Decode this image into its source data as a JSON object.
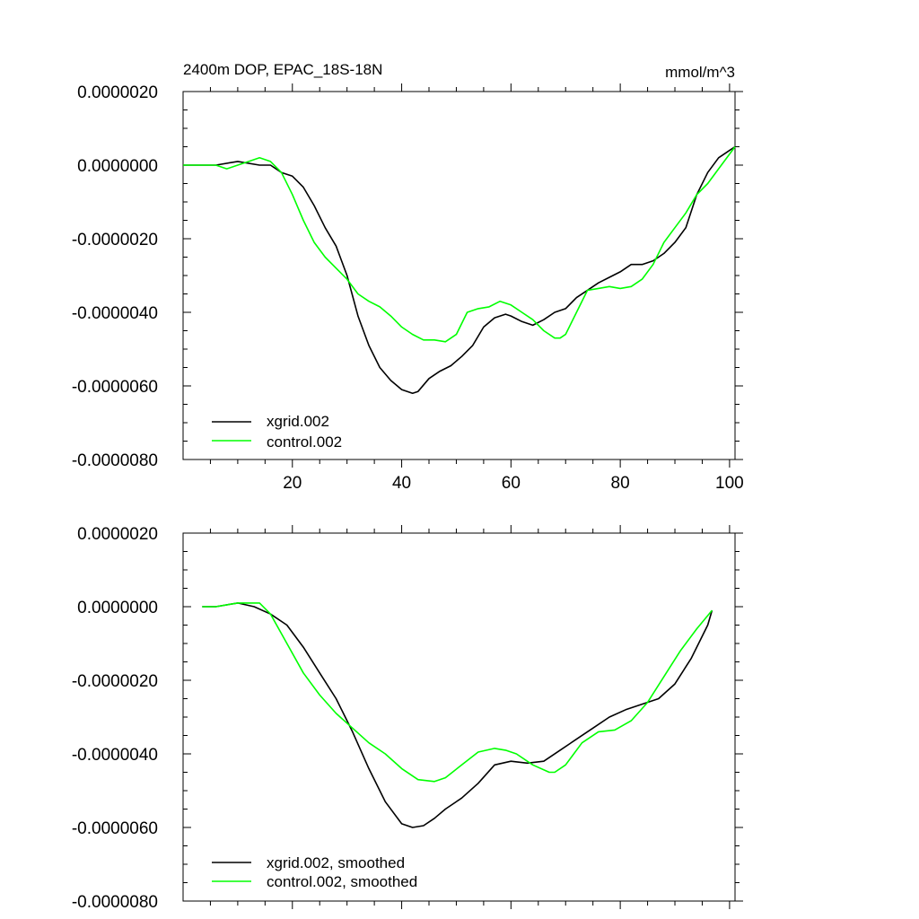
{
  "chart_data": [
    {
      "type": "line",
      "title": "2400m DOP, EPAC_18S-18N",
      "units": "mmol/m^3",
      "xlim": [
        0,
        101
      ],
      "ylim": [
        -8e-06,
        2e-06
      ],
      "xticks": [
        20,
        40,
        60,
        80,
        100
      ],
      "xtick_labels": [
        "20",
        "40",
        "60",
        "80",
        "100"
      ],
      "yticks": [
        2e-06,
        0.0,
        -2e-06,
        -4e-06,
        -6e-06,
        -8e-06
      ],
      "ytick_labels": [
        "0.0000020",
        "0.0000000",
        "-0.0000020",
        "-0.0000040",
        "-0.0000060",
        "-0.0000080"
      ],
      "legend_position": "lower-left",
      "series": [
        {
          "name": "xgrid.002",
          "color": "#000000",
          "x": [
            0,
            6,
            10,
            14,
            16,
            18,
            20,
            22,
            24,
            26,
            28,
            30,
            32,
            34,
            36,
            38,
            40,
            42,
            43,
            45,
            47,
            49,
            51,
            53,
            55,
            57,
            59,
            60,
            62,
            64,
            66,
            68,
            70,
            72,
            74,
            76,
            78,
            80,
            82,
            84,
            86,
            88,
            90,
            92,
            94,
            96,
            98,
            100,
            101
          ],
          "y": [
            0.0,
            0.0,
            1e-07,
            0.0,
            0.0,
            -2e-07,
            -3e-07,
            -6e-07,
            -1.1e-06,
            -1.7e-06,
            -2.2e-06,
            -3e-06,
            -4.1e-06,
            -4.9e-06,
            -5.5e-06,
            -5.85e-06,
            -6.1e-06,
            -6.2e-06,
            -6.15e-06,
            -5.8e-06,
            -5.6e-06,
            -5.45e-06,
            -5.2e-06,
            -4.9e-06,
            -4.4e-06,
            -4.15e-06,
            -4.05e-06,
            -4.1e-06,
            -4.25e-06,
            -4.35e-06,
            -4.2e-06,
            -4e-06,
            -3.9e-06,
            -3.6e-06,
            -3.4e-06,
            -3.2e-06,
            -3.05e-06,
            -2.9e-06,
            -2.7e-06,
            -2.7e-06,
            -2.6e-06,
            -2.4e-06,
            -2.1e-06,
            -1.7e-06,
            -8e-07,
            -2e-07,
            2e-07,
            4e-07,
            5e-07
          ]
        },
        {
          "name": "control.002",
          "color": "#00ff00",
          "x": [
            0,
            6,
            8,
            10,
            12,
            14,
            16,
            18,
            20,
            22,
            24,
            26,
            28,
            30,
            32,
            34,
            36,
            38,
            40,
            42,
            44,
            46,
            48,
            50,
            52,
            54,
            56,
            58,
            60,
            62,
            64,
            66,
            68,
            69,
            70,
            72,
            74,
            76,
            78,
            80,
            82,
            84,
            86,
            88,
            90,
            92,
            94,
            96,
            98,
            101
          ],
          "y": [
            0.0,
            0.0,
            -1e-07,
            0.0,
            1e-07,
            2e-07,
            1e-07,
            -2e-07,
            -8e-07,
            -1.5e-06,
            -2.1e-06,
            -2.5e-06,
            -2.8e-06,
            -3.1e-06,
            -3.5e-06,
            -3.7e-06,
            -3.85e-06,
            -4.1e-06,
            -4.4e-06,
            -4.6e-06,
            -4.75e-06,
            -4.75e-06,
            -4.8e-06,
            -4.6e-06,
            -4e-06,
            -3.9e-06,
            -3.85e-06,
            -3.7e-06,
            -3.8e-06,
            -4e-06,
            -4.2e-06,
            -4.5e-06,
            -4.7e-06,
            -4.7e-06,
            -4.6e-06,
            -4e-06,
            -3.4e-06,
            -3.35e-06,
            -3.3e-06,
            -3.35e-06,
            -3.3e-06,
            -3.1e-06,
            -2.7e-06,
            -2.1e-06,
            -1.7e-06,
            -1.3e-06,
            -8e-07,
            -5e-07,
            -1e-07,
            5e-07
          ]
        }
      ]
    },
    {
      "type": "line",
      "title": "",
      "xlim": [
        0,
        101
      ],
      "ylim": [
        -8e-06,
        2e-06
      ],
      "xticks": [
        20,
        40,
        60,
        80,
        100
      ],
      "yticks": [
        2e-06,
        0.0,
        -2e-06,
        -4e-06,
        -6e-06,
        -8e-06
      ],
      "ytick_labels": [
        "0.0000020",
        "0.0000000",
        "-0.0000020",
        "-0.0000040",
        "-0.0000060",
        "-0.0000080"
      ],
      "legend_position": "lower-left",
      "series": [
        {
          "name": "xgrid.002, smoothed",
          "color": "#000000",
          "x": [
            3.5,
            6,
            10,
            13,
            16,
            19,
            22,
            25,
            28,
            31,
            34,
            37,
            40,
            42,
            44,
            46,
            48,
            51,
            54,
            57,
            60,
            63,
            66,
            69,
            72,
            75,
            78,
            81,
            84,
            87,
            90,
            93,
            96,
            96.8
          ],
          "y": [
            0.0,
            0.0,
            1e-07,
            0.0,
            -2e-07,
            -5e-07,
            -1.1e-06,
            -1.8e-06,
            -2.5e-06,
            -3.4e-06,
            -4.4e-06,
            -5.3e-06,
            -5.9e-06,
            -6e-06,
            -5.95e-06,
            -5.75e-06,
            -5.5e-06,
            -5.2e-06,
            -4.8e-06,
            -4.3e-06,
            -4.2e-06,
            -4.25e-06,
            -4.2e-06,
            -3.9e-06,
            -3.6e-06,
            -3.3e-06,
            -3e-06,
            -2.8e-06,
            -2.65e-06,
            -2.5e-06,
            -2.1e-06,
            -1.4e-06,
            -5e-07,
            -1e-07
          ]
        },
        {
          "name": "control.002, smoothed",
          "color": "#00ff00",
          "x": [
            3.5,
            6,
            10,
            12,
            14,
            16,
            19,
            22,
            25,
            28,
            31,
            34,
            37,
            40,
            43,
            46,
            48,
            51,
            54,
            57,
            59,
            61,
            64,
            67,
            68,
            70,
            73,
            76,
            79,
            82,
            85,
            88,
            91,
            94,
            96.8
          ],
          "y": [
            0.0,
            0.0,
            1e-07,
            1e-07,
            1e-07,
            -2e-07,
            -1e-06,
            -1.8e-06,
            -2.4e-06,
            -2.9e-06,
            -3.3e-06,
            -3.7e-06,
            -4e-06,
            -4.4e-06,
            -4.7e-06,
            -4.75e-06,
            -4.65e-06,
            -4.3e-06,
            -3.95e-06,
            -3.85e-06,
            -3.9e-06,
            -4e-06,
            -4.3e-06,
            -4.5e-06,
            -4.5e-06,
            -4.3e-06,
            -3.7e-06,
            -3.4e-06,
            -3.35e-06,
            -3.1e-06,
            -2.6e-06,
            -1.9e-06,
            -1.2e-06,
            -6e-07,
            -1e-07
          ]
        }
      ]
    }
  ]
}
